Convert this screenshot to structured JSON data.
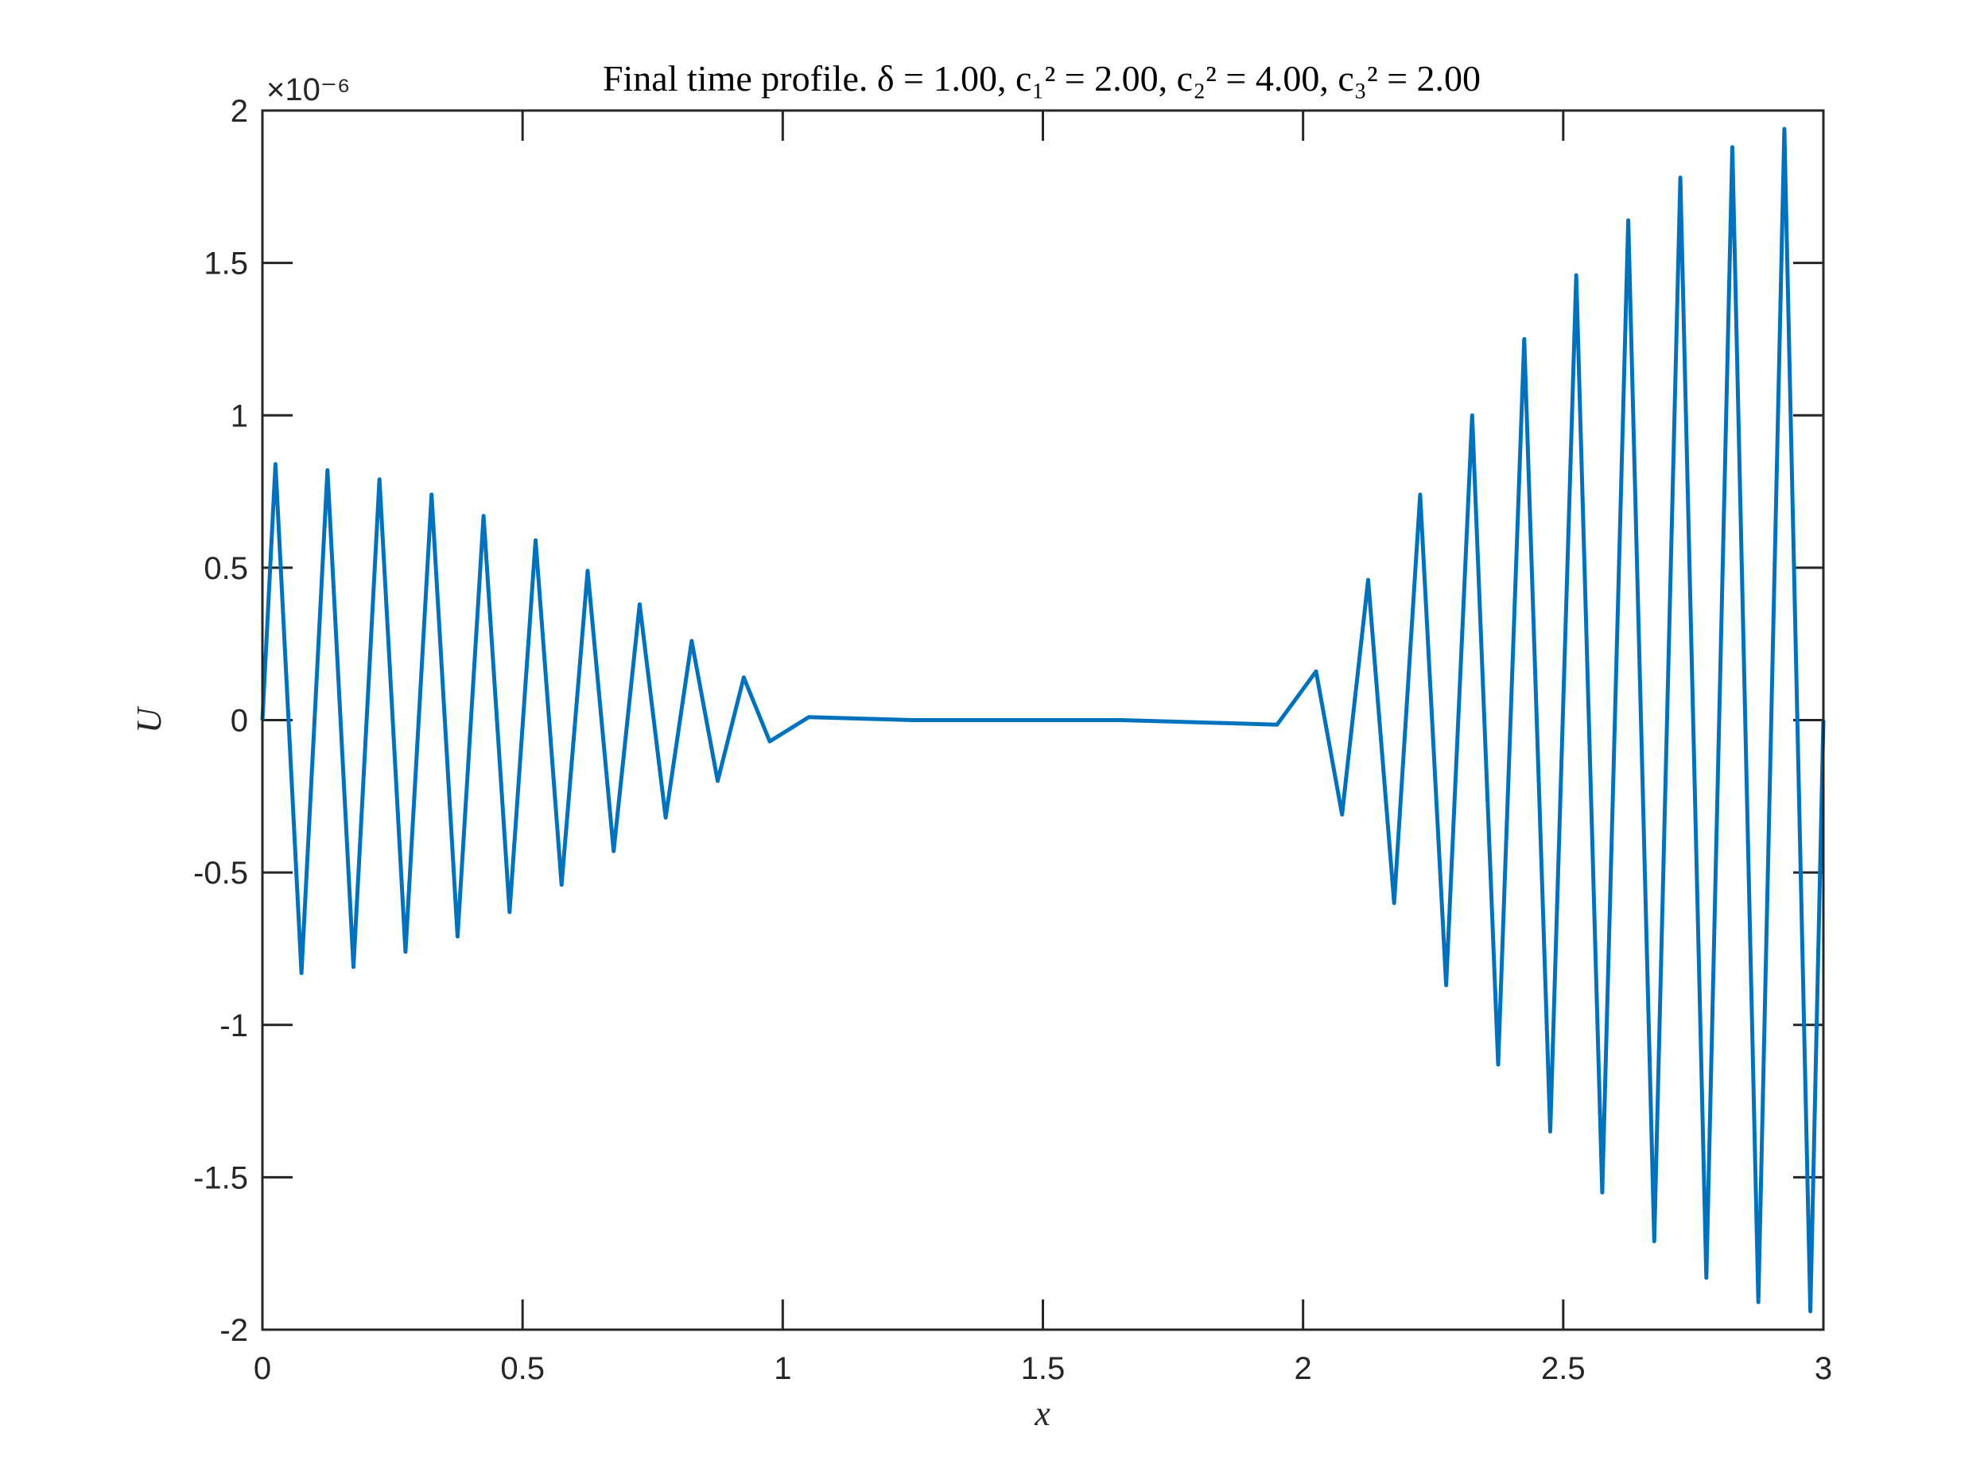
{
  "chart_data": {
    "type": "line",
    "title": "Final time profile. δ = 1.00, c₁² = 2.00, c₂² = 4.00, c₃² = 2.00",
    "xlabel": "x",
    "ylabel": "U",
    "y_exponent_label": "×10⁻⁶",
    "xlim": [
      0,
      3
    ],
    "ylim": [
      -2,
      2
    ],
    "x_ticks": [
      "0",
      "0.5",
      "1",
      "1.5",
      "2",
      "2.5",
      "3"
    ],
    "y_ticks": [
      "-2",
      "-1.5",
      "-1",
      "-0.5",
      "0",
      "0.5",
      "1",
      "1.5",
      "2"
    ],
    "grid": false,
    "line_color": "#0072BD",
    "series": [
      {
        "x": [
          0,
          0.025,
          0.075,
          0.125,
          0.175,
          0.225,
          0.275,
          0.325,
          0.375,
          0.425,
          0.475,
          0.525,
          0.575,
          0.625,
          0.675,
          0.725,
          0.775,
          0.825,
          0.875,
          0.925,
          0.975,
          1.05,
          1.15,
          1.25,
          1.35,
          1.45,
          1.55,
          1.65,
          1.75,
          1.85,
          1.95,
          2.025,
          2.075,
          2.125,
          2.175,
          2.225,
          2.275,
          2.325,
          2.375,
          2.425,
          2.475,
          2.525,
          2.575,
          2.625,
          2.675,
          2.725,
          2.775,
          2.825,
          2.875,
          2.925,
          2.975,
          3.0
        ],
        "values": [
          0,
          0.84,
          -0.83,
          0.82,
          -0.81,
          0.79,
          -0.76,
          0.74,
          -0.71,
          0.67,
          -0.63,
          0.59,
          -0.54,
          0.49,
          -0.43,
          0.38,
          -0.32,
          0.26,
          -0.2,
          0.14,
          -0.07,
          0.01,
          0.005,
          0,
          0,
          0,
          0,
          0,
          -0.005,
          -0.01,
          -0.015,
          0.16,
          -0.31,
          0.46,
          -0.6,
          0.74,
          -0.87,
          1.0,
          -1.13,
          1.25,
          -1.35,
          1.46,
          -1.55,
          1.64,
          -1.71,
          1.78,
          -1.83,
          1.88,
          -1.91,
          1.94,
          -1.94,
          0
        ]
      }
    ]
  }
}
